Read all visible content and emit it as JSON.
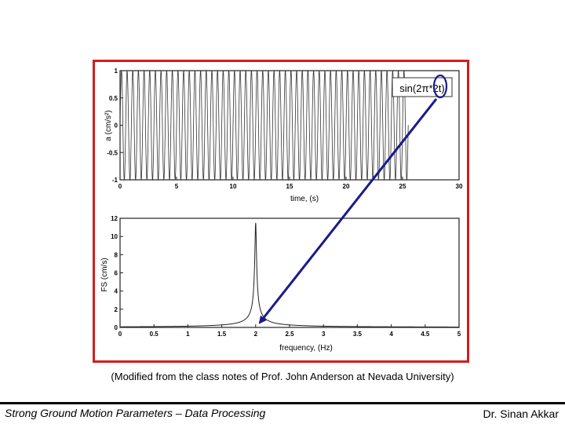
{
  "figure": {
    "border_color": "#d21d1d",
    "arrow_color": "#1a1a8c",
    "annotation": "sin(2π*2t)"
  },
  "caption": "(Modified from the class notes of Prof. John Anderson at Nevada University)",
  "footer": {
    "left": "Strong Ground Motion Parameters – Data Processing",
    "right": "Dr. Sinan Akkar"
  },
  "chart_data": [
    {
      "type": "line",
      "title": "",
      "xlabel": "time, (s)",
      "ylabel": "a (cm/s²)",
      "xlim": [
        0,
        30
      ],
      "ylim": [
        -1,
        1
      ],
      "xticks": [
        "0",
        "5",
        "10",
        "15",
        "20",
        "25",
        "30"
      ],
      "yticks": [
        "1",
        "0.5",
        "0",
        "-0.5",
        "-1"
      ],
      "series": [
        {
          "function": "sin(2π·2t)",
          "frequency_hz": 2,
          "amplitude": 1,
          "t_start": 0,
          "t_end": 25.5
        }
      ]
    },
    {
      "type": "line",
      "title": "",
      "xlabel": "frequency, (Hz)",
      "ylabel": "FS (cm/s)",
      "xlim": [
        0,
        5
      ],
      "ylim": [
        0,
        12
      ],
      "xticks": [
        "0",
        "0.5",
        "1",
        "1.5",
        "2",
        "2.5",
        "3",
        "3.5",
        "4",
        "4.5",
        "5"
      ],
      "yticks": [
        "12",
        "10",
        "8",
        "6",
        "4",
        "2",
        "0"
      ],
      "series": [
        {
          "peak_frequency_hz": 2.0,
          "peak_value": 11.5
        }
      ]
    }
  ]
}
